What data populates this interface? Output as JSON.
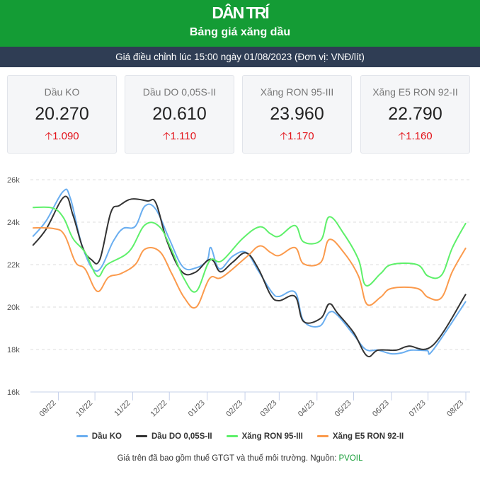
{
  "header": {
    "logo": "DÂN TRÍ",
    "title": "Bảng giá xăng dầu",
    "subtitle": "Giá điều chỉnh lúc 15:00 ngày 01/08/2023 (Đơn vị: VNĐ/lít)"
  },
  "cards": [
    {
      "name": "Dầu KO",
      "price": "20.270",
      "change": "1.090"
    },
    {
      "name": "Dầu DO 0,05S-II",
      "price": "20.610",
      "change": "1.110"
    },
    {
      "name": "Xăng RON 95-III",
      "price": "23.960",
      "change": "1.170"
    },
    {
      "name": "Xăng E5 RON 92-II",
      "price": "22.790",
      "change": "1.160"
    }
  ],
  "change_icon": "arrow-up-icon",
  "colors": {
    "header": "#149c35",
    "subbar": "#2f3d54",
    "increase": "#e3141b"
  },
  "footer": {
    "note": "Giá trên đã bao gồm thuế GTGT và thuế môi trường. Nguồn: ",
    "source": "PVOIL"
  },
  "chart_data": {
    "type": "line",
    "ylim": [
      16000,
      26000
    ],
    "yticks": [
      "16k",
      "18k",
      "20k",
      "22k",
      "24k",
      "26k"
    ],
    "xticks": [
      "09/22",
      "10/22",
      "11/22",
      "12/22",
      "01/23",
      "02/23",
      "03/23",
      "04/23",
      "05/23",
      "06/23",
      "07/23",
      "08/23"
    ],
    "grid": true,
    "legend": "bottom",
    "series": [
      {
        "name": "Dầu KO",
        "color": "#6aaef0",
        "points": [
          [
            "2022-08-11",
            23320
          ],
          [
            "2022-08-22",
            24060
          ],
          [
            "2022-09-05",
            25450
          ],
          [
            "2022-09-11",
            25100
          ],
          [
            "2022-09-21",
            22800
          ],
          [
            "2022-10-03",
            21700
          ],
          [
            "2022-10-16",
            23100
          ],
          [
            "2022-10-24",
            23700
          ],
          [
            "2022-11-03",
            23800
          ],
          [
            "2022-11-11",
            24760
          ],
          [
            "2022-11-20",
            24600
          ],
          [
            "2022-12-01",
            23200
          ],
          [
            "2022-12-12",
            21900
          ],
          [
            "2022-12-23",
            21850
          ],
          [
            "2023-01-01",
            22200
          ],
          [
            "2023-01-04",
            22800
          ],
          [
            "2023-01-11",
            21800
          ],
          [
            "2023-01-22",
            22400
          ],
          [
            "2023-02-02",
            22570
          ],
          [
            "2023-02-12",
            21700
          ],
          [
            "2023-02-23",
            20700
          ],
          [
            "2023-03-01",
            20500
          ],
          [
            "2023-03-14",
            20700
          ],
          [
            "2023-03-21",
            19350
          ],
          [
            "2023-04-03",
            19100
          ],
          [
            "2023-04-11",
            19750
          ],
          [
            "2023-04-18",
            19600
          ],
          [
            "2023-05-01",
            18700
          ],
          [
            "2023-05-11",
            18000
          ],
          [
            "2023-05-21",
            17970
          ],
          [
            "2023-06-01",
            17800
          ],
          [
            "2023-06-10",
            17850
          ],
          [
            "2023-06-17",
            17970
          ],
          [
            "2023-06-30",
            17950
          ],
          [
            "2023-07-05",
            17970
          ],
          [
            "2023-08-01",
            20270
          ]
        ]
      },
      {
        "name": "Dầu DO 0,05S-II",
        "color": "#333333",
        "points": [
          [
            "2022-08-11",
            22900
          ],
          [
            "2022-08-22",
            23670
          ],
          [
            "2022-09-06",
            25200
          ],
          [
            "2022-09-13",
            24330
          ],
          [
            "2022-09-21",
            22800
          ],
          [
            "2022-09-28",
            22240
          ],
          [
            "2022-10-05",
            22240
          ],
          [
            "2022-10-14",
            24450
          ],
          [
            "2022-10-21",
            24780
          ],
          [
            "2022-10-31",
            25090
          ],
          [
            "2022-11-13",
            25000
          ],
          [
            "2022-11-20",
            24900
          ],
          [
            "2022-11-29",
            23120
          ],
          [
            "2022-12-11",
            21680
          ],
          [
            "2022-12-22",
            21630
          ],
          [
            "2023-01-01",
            22180
          ],
          [
            "2023-01-06",
            22180
          ],
          [
            "2023-01-12",
            21660
          ],
          [
            "2023-01-22",
            22120
          ],
          [
            "2023-02-02",
            22550
          ],
          [
            "2023-02-12",
            21800
          ],
          [
            "2023-02-22",
            20570
          ],
          [
            "2023-03-01",
            20300
          ],
          [
            "2023-03-14",
            20500
          ],
          [
            "2023-03-21",
            19320
          ],
          [
            "2023-04-04",
            19470
          ],
          [
            "2023-04-11",
            20150
          ],
          [
            "2023-04-18",
            19700
          ],
          [
            "2023-05-01",
            18800
          ],
          [
            "2023-05-12",
            17700
          ],
          [
            "2023-05-21",
            17970
          ],
          [
            "2023-06-05",
            17970
          ],
          [
            "2023-06-15",
            18160
          ],
          [
            "2023-07-05",
            18200
          ],
          [
            "2023-08-01",
            20610
          ]
        ]
      },
      {
        "name": "Xăng RON 95-III",
        "color": "#5ef06a",
        "points": [
          [
            "2022-08-11",
            24690
          ],
          [
            "2022-08-27",
            24670
          ],
          [
            "2022-09-05",
            24230
          ],
          [
            "2022-09-13",
            23230
          ],
          [
            "2022-09-23",
            22570
          ],
          [
            "2022-10-03",
            21460
          ],
          [
            "2022-10-11",
            22000
          ],
          [
            "2022-10-29",
            22620
          ],
          [
            "2022-11-11",
            23870
          ],
          [
            "2022-11-23",
            23780
          ],
          [
            "2022-12-03",
            22670
          ],
          [
            "2022-12-13",
            21340
          ],
          [
            "2022-12-23",
            20740
          ],
          [
            "2023-01-03",
            22180
          ],
          [
            "2023-01-13",
            22180
          ],
          [
            "2023-01-30",
            23230
          ],
          [
            "2023-02-13",
            23780
          ],
          [
            "2023-02-22",
            23450
          ],
          [
            "2023-03-01",
            23340
          ],
          [
            "2023-03-14",
            23840
          ],
          [
            "2023-03-21",
            23070
          ],
          [
            "2023-04-04",
            23140
          ],
          [
            "2023-04-11",
            24250
          ],
          [
            "2023-04-23",
            23450
          ],
          [
            "2023-05-05",
            22240
          ],
          [
            "2023-05-11",
            21020
          ],
          [
            "2023-05-23",
            21570
          ],
          [
            "2023-06-01",
            22000
          ],
          [
            "2023-06-22",
            22000
          ],
          [
            "2023-07-01",
            21460
          ],
          [
            "2023-07-12",
            21500
          ],
          [
            "2023-07-21",
            22800
          ],
          [
            "2023-08-01",
            23960
          ]
        ]
      },
      {
        "name": "Xăng E5 RON 92-II",
        "color": "#fb9a4c",
        "points": [
          [
            "2022-08-11",
            23730
          ],
          [
            "2022-08-28",
            23700
          ],
          [
            "2022-09-06",
            23400
          ],
          [
            "2022-09-15",
            22120
          ],
          [
            "2022-09-23",
            21790
          ],
          [
            "2022-10-03",
            20740
          ],
          [
            "2022-10-12",
            21400
          ],
          [
            "2022-10-22",
            21570
          ],
          [
            "2022-11-03",
            22000
          ],
          [
            "2022-11-11",
            22730
          ],
          [
            "2022-11-23",
            22620
          ],
          [
            "2022-12-03",
            21570
          ],
          [
            "2022-12-13",
            20460
          ],
          [
            "2022-12-23",
            20000
          ],
          [
            "2023-01-03",
            21350
          ],
          [
            "2023-01-13",
            21400
          ],
          [
            "2023-02-02",
            22350
          ],
          [
            "2023-02-13",
            22880
          ],
          [
            "2023-02-22",
            22570
          ],
          [
            "2023-03-01",
            22430
          ],
          [
            "2023-03-14",
            22800
          ],
          [
            "2023-03-21",
            22040
          ],
          [
            "2023-04-04",
            22100
          ],
          [
            "2023-04-11",
            23180
          ],
          [
            "2023-04-23",
            22570
          ],
          [
            "2023-05-05",
            21460
          ],
          [
            "2023-05-12",
            20130
          ],
          [
            "2023-05-23",
            20460
          ],
          [
            "2023-06-01",
            20880
          ],
          [
            "2023-06-22",
            20880
          ],
          [
            "2023-07-01",
            20460
          ],
          [
            "2023-07-12",
            20440
          ],
          [
            "2023-07-21",
            21680
          ],
          [
            "2023-08-01",
            22790
          ]
        ]
      }
    ]
  }
}
